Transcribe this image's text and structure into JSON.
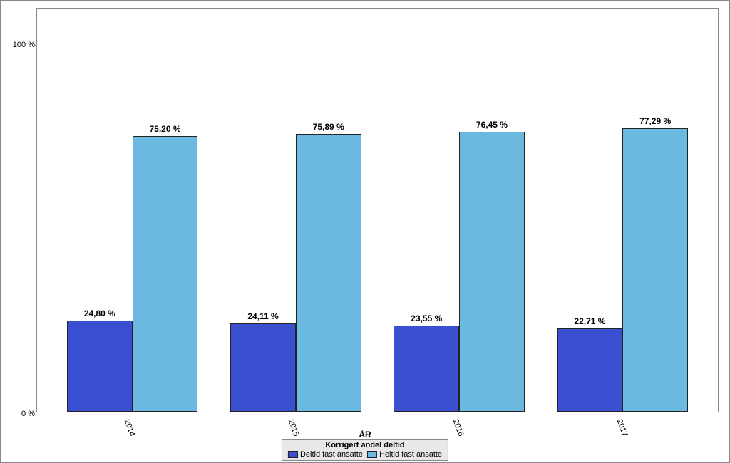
{
  "chart": {
    "type": "bar-grouped",
    "background_color": "#ffffff",
    "border_color": "#888888",
    "y_axis": {
      "min": 0,
      "max": 110,
      "ticks": [
        {
          "value": 0,
          "label": "0 %"
        },
        {
          "value": 100,
          "label": "100 %"
        }
      ]
    },
    "x_axis": {
      "title": "ÅR",
      "categories": [
        "2014",
        "2015",
        "2016",
        "2017"
      ]
    },
    "series": [
      {
        "key": "deltid",
        "name": "Deltid fast ansatte",
        "color": "#3b4fd1",
        "values": [
          24.8,
          24.11,
          23.55,
          22.71
        ],
        "labels": [
          "24,80 %",
          "24,11 %",
          "23,55 %",
          "22,71 %"
        ]
      },
      {
        "key": "heltid",
        "name": "Heltid fast ansatte",
        "color": "#6bb8e0",
        "values": [
          75.2,
          75.89,
          76.45,
          77.29
        ],
        "labels": [
          "75,20 %",
          "75,89 %",
          "76,45 %",
          "77,29 %"
        ]
      }
    ],
    "legend": {
      "title": "Korrigert andel deltid",
      "background": "#e8e8e8",
      "border_color": "#888888"
    },
    "layout": {
      "group_width_pct": 20,
      "group_gap_pct": 5,
      "bar_width_pct_of_group": 48,
      "label_fontsize": 12,
      "label_fontweight": "bold",
      "tick_fontsize": 11
    }
  }
}
